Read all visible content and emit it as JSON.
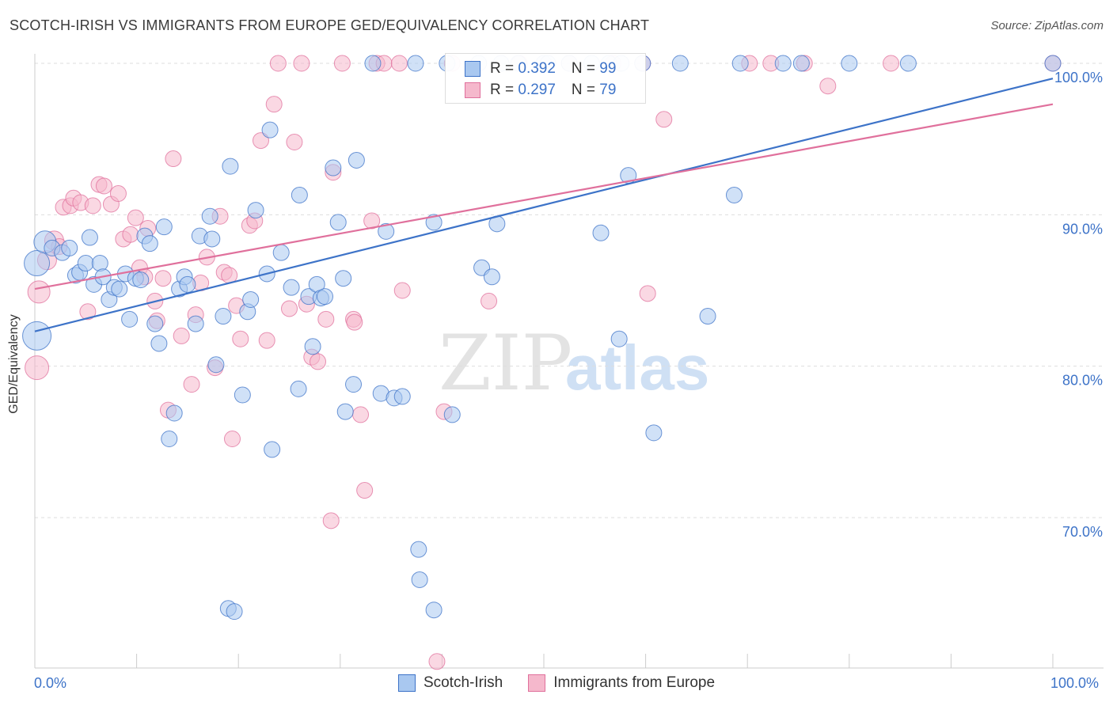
{
  "title": "SCOTCH-IRISH VS IMMIGRANTS FROM EUROPE GED/EQUIVALENCY CORRELATION CHART",
  "source": "Source: ZipAtlas.com",
  "watermark": {
    "zip": "ZIP",
    "atlas": "atlas"
  },
  "colors": {
    "blue": "#3d73c8",
    "blue_fill": "#a9c8f0",
    "pink": "#e0709c",
    "pink_fill": "#f5b8cc",
    "grid": "#dddddd"
  },
  "legend_top": {
    "rows": [
      {
        "r_label": "R = ",
        "r_value": "0.392",
        "n_label": "N = ",
        "n_value": "99"
      },
      {
        "r_label": "R = ",
        "r_value": "0.297",
        "n_label": "N = ",
        "n_value": "79"
      }
    ]
  },
  "legend_bottom": [
    "Scotch-Irish",
    "Immigrants from Europe"
  ],
  "chart_data": {
    "type": "scatter",
    "title": "SCOTCH-IRISH VS IMMIGRANTS FROM EUROPE GED/EQUIVALENCY CORRELATION CHART",
    "xlabel": "",
    "ylabel": "GED/Equivalency",
    "xlim": [
      0,
      100
    ],
    "ylim": [
      60.5,
      102
    ],
    "x_tick_labels": [
      "0.0%",
      "100.0%"
    ],
    "y_ticks": [
      70,
      80,
      90,
      100
    ],
    "y_tick_labels": [
      "70.0%",
      "80.0%",
      "90.0%",
      "100.0%"
    ],
    "grid": true,
    "legend_position": "top-center",
    "series": [
      {
        "name": "Scotch-Irish",
        "color": "#3d73c8",
        "r": 0.392,
        "n": 99,
        "trend": {
          "x": [
            0,
            100
          ],
          "y": [
            82.3,
            99.0
          ]
        },
        "points": [
          [
            0.2,
            82.0,
            18
          ],
          [
            0.2,
            86.8,
            16
          ],
          [
            1.0,
            88.2,
            14
          ],
          [
            1.7,
            87.8,
            10
          ],
          [
            2.7,
            87.5,
            10
          ],
          [
            3.4,
            87.8,
            10
          ],
          [
            4.0,
            86.0,
            10
          ],
          [
            4.4,
            86.2,
            10
          ],
          [
            5.0,
            86.8,
            10
          ],
          [
            5.4,
            88.5,
            10
          ],
          [
            5.8,
            85.4,
            10
          ],
          [
            6.4,
            86.8,
            10
          ],
          [
            6.7,
            85.9,
            10
          ],
          [
            7.3,
            84.4,
            10
          ],
          [
            7.8,
            85.2,
            10
          ],
          [
            8.3,
            85.1,
            10
          ],
          [
            8.9,
            86.1,
            10
          ],
          [
            9.3,
            83.1,
            10
          ],
          [
            9.9,
            85.8,
            10
          ],
          [
            10.4,
            85.7,
            10
          ],
          [
            10.8,
            88.6,
            10
          ],
          [
            11.3,
            88.1,
            10
          ],
          [
            11.8,
            82.8,
            10
          ],
          [
            12.2,
            81.5,
            10
          ],
          [
            12.7,
            89.2,
            10
          ],
          [
            13.2,
            75.2,
            10
          ],
          [
            13.7,
            76.9,
            10
          ],
          [
            14.2,
            85.1,
            10
          ],
          [
            14.7,
            85.9,
            10
          ],
          [
            15.0,
            85.4,
            10
          ],
          [
            15.8,
            82.8,
            10
          ],
          [
            16.2,
            88.6,
            10
          ],
          [
            17.2,
            89.9,
            10
          ],
          [
            17.4,
            88.4,
            10
          ],
          [
            17.8,
            80.1,
            10
          ],
          [
            18.5,
            83.3,
            10
          ],
          [
            19.0,
            64.0,
            10
          ],
          [
            19.2,
            93.2,
            10
          ],
          [
            19.6,
            63.8,
            10
          ],
          [
            20.4,
            78.1,
            10
          ],
          [
            20.9,
            83.6,
            10
          ],
          [
            21.2,
            84.4,
            10
          ],
          [
            21.7,
            90.3,
            10
          ],
          [
            22.8,
            86.1,
            10
          ],
          [
            23.1,
            95.6,
            10
          ],
          [
            23.3,
            74.5,
            10
          ],
          [
            24.2,
            87.5,
            10
          ],
          [
            25.2,
            85.2,
            10
          ],
          [
            25.9,
            78.5,
            10
          ],
          [
            26.0,
            91.3,
            10
          ],
          [
            26.9,
            84.6,
            10
          ],
          [
            27.3,
            81.3,
            10
          ],
          [
            27.7,
            85.4,
            10
          ],
          [
            28.1,
            84.5,
            10
          ],
          [
            28.5,
            84.6,
            10
          ],
          [
            29.3,
            93.1,
            10
          ],
          [
            29.8,
            89.5,
            10
          ],
          [
            30.3,
            85.8,
            10
          ],
          [
            30.5,
            77.0,
            10
          ],
          [
            31.3,
            78.8,
            10
          ],
          [
            31.6,
            93.6,
            10
          ],
          [
            33.2,
            100.0,
            10
          ],
          [
            34.0,
            78.2,
            10
          ],
          [
            34.5,
            88.9,
            10
          ],
          [
            35.3,
            77.9,
            10
          ],
          [
            36.1,
            78.0,
            10
          ],
          [
            37.7,
            67.9,
            10
          ],
          [
            37.4,
            100.0,
            10
          ],
          [
            37.8,
            65.9,
            10
          ],
          [
            39.2,
            89.5,
            10
          ],
          [
            39.2,
            63.9,
            10
          ],
          [
            40.5,
            100.0,
            10
          ],
          [
            41.0,
            76.8,
            10
          ],
          [
            43.6,
            100.0,
            10
          ],
          [
            43.9,
            86.5,
            10
          ],
          [
            44.9,
            85.9,
            10
          ],
          [
            45.4,
            89.4,
            10
          ],
          [
            45.8,
            100.0,
            10
          ],
          [
            47.5,
            100.0,
            10
          ],
          [
            50.0,
            100.0,
            10
          ],
          [
            50.4,
            100.0,
            10
          ],
          [
            52.5,
            100.0,
            10
          ],
          [
            54.7,
            100.0,
            10
          ],
          [
            55.6,
            88.8,
            10
          ],
          [
            56.4,
            100.0,
            10
          ],
          [
            57.4,
            81.8,
            10
          ],
          [
            57.6,
            100.0,
            10
          ],
          [
            58.3,
            92.6,
            10
          ],
          [
            59.7,
            100.0,
            10
          ],
          [
            60.8,
            75.6,
            10
          ],
          [
            63.4,
            100.0,
            10
          ],
          [
            66.1,
            83.3,
            10
          ],
          [
            68.7,
            91.3,
            10
          ],
          [
            69.3,
            100.0,
            10
          ],
          [
            73.5,
            100.0,
            10
          ],
          [
            75.3,
            100.0,
            10
          ],
          [
            80.0,
            100.0,
            10
          ],
          [
            85.8,
            100.0,
            10
          ],
          [
            100.0,
            100.0,
            10
          ]
        ]
      },
      {
        "name": "Immigrants from Europe",
        "color": "#e0709c",
        "r": 0.297,
        "n": 79,
        "trend": {
          "x": [
            0,
            100
          ],
          "y": [
            85.1,
            97.3
          ]
        },
        "points": [
          [
            0.2,
            79.9,
            15
          ],
          [
            0.4,
            84.9,
            14
          ],
          [
            1.2,
            87.0,
            12
          ],
          [
            1.9,
            88.3,
            12
          ],
          [
            2.4,
            87.9,
            10
          ],
          [
            2.8,
            90.5,
            10
          ],
          [
            3.5,
            90.6,
            10
          ],
          [
            3.8,
            91.1,
            10
          ],
          [
            4.5,
            90.8,
            10
          ],
          [
            5.2,
            83.6,
            10
          ],
          [
            5.7,
            90.6,
            10
          ],
          [
            6.3,
            92.0,
            10
          ],
          [
            6.8,
            91.9,
            10
          ],
          [
            7.5,
            90.7,
            10
          ],
          [
            8.2,
            91.4,
            10
          ],
          [
            8.7,
            88.4,
            10
          ],
          [
            9.4,
            88.7,
            10
          ],
          [
            9.9,
            89.8,
            10
          ],
          [
            10.3,
            86.5,
            10
          ],
          [
            10.8,
            85.9,
            10
          ],
          [
            11.1,
            89.1,
            10
          ],
          [
            11.8,
            84.3,
            10
          ],
          [
            12.0,
            83.0,
            10
          ],
          [
            12.6,
            85.8,
            10
          ],
          [
            13.1,
            77.1,
            10
          ],
          [
            13.6,
            93.7,
            10
          ],
          [
            14.4,
            82.0,
            10
          ],
          [
            15.4,
            78.8,
            10
          ],
          [
            15.8,
            83.4,
            10
          ],
          [
            16.3,
            85.5,
            10
          ],
          [
            16.9,
            87.2,
            10
          ],
          [
            17.7,
            79.9,
            10
          ],
          [
            18.2,
            89.9,
            10
          ],
          [
            18.6,
            86.2,
            10
          ],
          [
            19.1,
            86.0,
            10
          ],
          [
            19.4,
            75.2,
            10
          ],
          [
            19.8,
            84.0,
            10
          ],
          [
            20.2,
            81.8,
            10
          ],
          [
            21.1,
            89.3,
            10
          ],
          [
            21.6,
            89.6,
            10
          ],
          [
            22.2,
            94.9,
            10
          ],
          [
            22.8,
            81.7,
            10
          ],
          [
            23.5,
            97.3,
            10
          ],
          [
            23.9,
            100.0,
            10
          ],
          [
            25.0,
            83.8,
            10
          ],
          [
            25.5,
            94.8,
            10
          ],
          [
            26.2,
            100.0,
            10
          ],
          [
            26.7,
            84.1,
            10
          ],
          [
            27.2,
            80.6,
            10
          ],
          [
            27.8,
            80.3,
            10
          ],
          [
            28.6,
            83.1,
            10
          ],
          [
            29.1,
            69.8,
            10
          ],
          [
            29.3,
            92.8,
            10
          ],
          [
            30.2,
            100.0,
            10
          ],
          [
            31.3,
            83.1,
            10
          ],
          [
            31.4,
            82.9,
            10
          ],
          [
            32.0,
            76.8,
            10
          ],
          [
            32.4,
            71.8,
            10
          ],
          [
            33.1,
            89.6,
            10
          ],
          [
            33.6,
            100.0,
            10
          ],
          [
            34.3,
            100.0,
            10
          ],
          [
            35.8,
            100.0,
            10
          ],
          [
            36.1,
            85.0,
            10
          ],
          [
            39.5,
            60.5,
            10
          ],
          [
            40.2,
            77.0,
            10
          ],
          [
            41.0,
            100.0,
            10
          ],
          [
            44.6,
            84.3,
            10
          ],
          [
            47.6,
            100.0,
            10
          ],
          [
            52.5,
            100.0,
            10
          ],
          [
            56.8,
            100.0,
            10
          ],
          [
            59.7,
            100.0,
            10
          ],
          [
            60.2,
            84.8,
            10
          ],
          [
            61.8,
            96.3,
            10
          ],
          [
            70.2,
            100.0,
            10
          ],
          [
            75.6,
            100.0,
            10
          ],
          [
            77.9,
            98.5,
            10
          ],
          [
            84.1,
            100.0,
            10
          ],
          [
            100.0,
            100.0,
            10
          ],
          [
            72.3,
            100.0,
            10
          ]
        ]
      }
    ]
  }
}
